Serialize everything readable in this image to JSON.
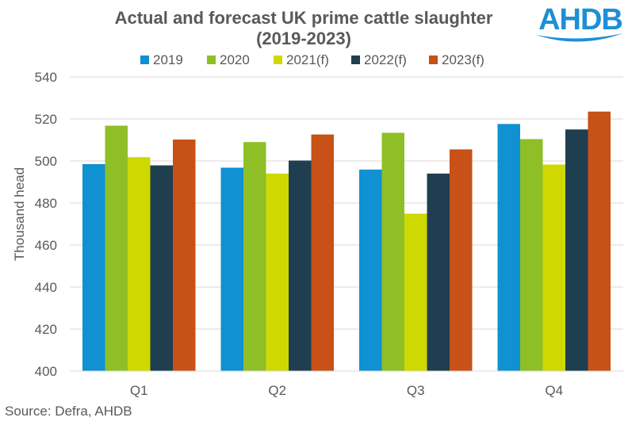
{
  "logo_text": "AHDB",
  "chart_data": {
    "type": "bar",
    "title_lines": [
      "Actual and forecast UK prime cattle slaughter",
      "(2019-2023)"
    ],
    "xlabel": "",
    "ylabel": "Thousand head",
    "ylim": [
      400,
      540
    ],
    "yticks": [
      400,
      420,
      440,
      460,
      480,
      500,
      520,
      540
    ],
    "grid": true,
    "legend_position": "top",
    "categories": [
      "Q1",
      "Q2",
      "Q3",
      "Q4"
    ],
    "series": [
      {
        "name": "2019",
        "color": "#0f91d2",
        "values": [
          498.5,
          496.8,
          495.9,
          517.6
        ]
      },
      {
        "name": "2020",
        "color": "#8fbf26",
        "values": [
          516.8,
          509.0,
          513.4,
          510.4
        ]
      },
      {
        "name": "2021(f)",
        "color": "#cfd800",
        "values": [
          501.8,
          494.0,
          474.9,
          498.3
        ]
      },
      {
        "name": "2022(f)",
        "color": "#1f3f50",
        "values": [
          497.9,
          500.2,
          494.0,
          515.0
        ]
      },
      {
        "name": "2023(f)",
        "color": "#c75116",
        "values": [
          510.2,
          512.6,
          505.5,
          523.5
        ]
      }
    ],
    "source": "Source: Defra, AHDB"
  }
}
